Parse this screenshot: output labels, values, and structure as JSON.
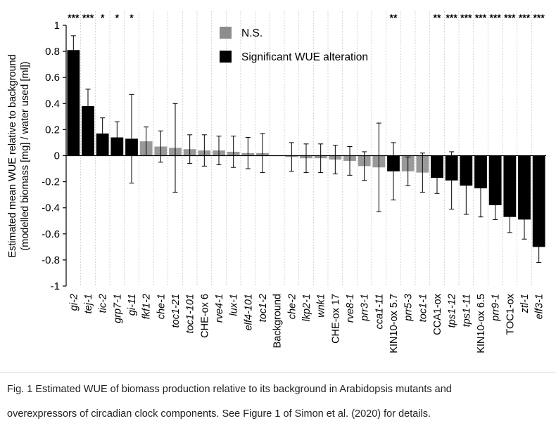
{
  "chart_data": {
    "type": "bar",
    "title": "",
    "ylabel": "Estimated mean WUE relative to background (modelled biomass [mg] / water used [ml])",
    "ylabel_lines": [
      "Estimated mean WUE relative to background",
      "(modelled biomass [mg] / water used [ml])"
    ],
    "xlabel": "",
    "ylim": [
      -1,
      1
    ],
    "yticks": [
      -1,
      -0.8,
      -0.6,
      -0.4,
      -0.2,
      0,
      0.2,
      0.4,
      0.6,
      0.8,
      1
    ],
    "ytick_labels": [
      "-1",
      "-0.8",
      "-0.6",
      "-0.4",
      "-0.2",
      "0",
      "0.2",
      "0.4",
      "0.6",
      "0.8",
      "1"
    ],
    "grid": "vertical dashed separators",
    "legend_position": "top-center",
    "legend": [
      {
        "label": "N.S.",
        "color": "#8c8c8c"
      },
      {
        "label": "Significant WUE alteration",
        "color": "#000000"
      }
    ],
    "colors": {
      "significant": "#000000",
      "ns": "#999999"
    },
    "series": [
      {
        "category": "gi-2",
        "italic": true,
        "value": 0.81,
        "err": 0.11,
        "significant": true,
        "stars": "***"
      },
      {
        "category": "tej-1",
        "italic": true,
        "value": 0.38,
        "err": 0.13,
        "significant": true,
        "stars": "***"
      },
      {
        "category": "tic-2",
        "italic": true,
        "value": 0.17,
        "err": 0.12,
        "significant": true,
        "stars": "*"
      },
      {
        "category": "grp7-1",
        "italic": true,
        "value": 0.14,
        "err": 0.12,
        "significant": true,
        "stars": "*"
      },
      {
        "category": "gi-11",
        "italic": true,
        "value": 0.13,
        "err": 0.34,
        "significant": true,
        "stars": "*"
      },
      {
        "category": "fkf1-2",
        "italic": true,
        "value": 0.11,
        "err": 0.11,
        "significant": false,
        "stars": ""
      },
      {
        "category": "che-1",
        "italic": true,
        "value": 0.07,
        "err": 0.12,
        "significant": false,
        "stars": ""
      },
      {
        "category": "toc1-21",
        "italic": true,
        "value": 0.06,
        "err": 0.34,
        "significant": false,
        "stars": ""
      },
      {
        "category": "toc1-101",
        "italic": true,
        "value": 0.05,
        "err": 0.11,
        "significant": false,
        "stars": ""
      },
      {
        "category": "CHE-ox 6",
        "italic": false,
        "value": 0.04,
        "err": 0.12,
        "significant": false,
        "stars": ""
      },
      {
        "category": "rve4-1",
        "italic": true,
        "value": 0.04,
        "err": 0.11,
        "significant": false,
        "stars": ""
      },
      {
        "category": "lux-1",
        "italic": true,
        "value": 0.03,
        "err": 0.12,
        "significant": false,
        "stars": ""
      },
      {
        "category": "elf4-101",
        "italic": true,
        "value": 0.02,
        "err": 0.12,
        "significant": false,
        "stars": ""
      },
      {
        "category": "toc1-2",
        "italic": true,
        "value": 0.02,
        "err": 0.15,
        "significant": false,
        "stars": ""
      },
      {
        "category": "Background",
        "italic": false,
        "value": 0.0,
        "err": 0.0,
        "significant": false,
        "stars": ""
      },
      {
        "category": "che-2",
        "italic": true,
        "value": -0.01,
        "err": 0.11,
        "significant": false,
        "stars": ""
      },
      {
        "category": "lkp2-1",
        "italic": true,
        "value": -0.02,
        "err": 0.11,
        "significant": false,
        "stars": ""
      },
      {
        "category": "wnk1",
        "italic": true,
        "value": -0.02,
        "err": 0.11,
        "significant": false,
        "stars": ""
      },
      {
        "category": "CHE-ox 17",
        "italic": false,
        "value": -0.03,
        "err": 0.11,
        "significant": false,
        "stars": ""
      },
      {
        "category": "rve8-1",
        "italic": true,
        "value": -0.04,
        "err": 0.11,
        "significant": false,
        "stars": ""
      },
      {
        "category": "prr3-1",
        "italic": true,
        "value": -0.08,
        "err": 0.11,
        "significant": false,
        "stars": ""
      },
      {
        "category": "cca1-11",
        "italic": true,
        "value": -0.09,
        "err": 0.34,
        "significant": false,
        "stars": ""
      },
      {
        "category": "KIN10-ox 5.7",
        "italic": false,
        "value": -0.12,
        "err": 0.22,
        "significant": true,
        "stars": "**"
      },
      {
        "category": "prr5-3",
        "italic": true,
        "value": -0.12,
        "err": 0.11,
        "significant": false,
        "stars": ""
      },
      {
        "category": "toc1-1",
        "italic": true,
        "value": -0.13,
        "err": 0.15,
        "significant": false,
        "stars": ""
      },
      {
        "category": "CCA1-ox",
        "italic": false,
        "value": -0.17,
        "err": 0.12,
        "significant": true,
        "stars": "**"
      },
      {
        "category": "tps1-12",
        "italic": true,
        "value": -0.19,
        "err": 0.22,
        "significant": true,
        "stars": "***"
      },
      {
        "category": "tps1-11",
        "italic": true,
        "value": -0.23,
        "err": 0.22,
        "significant": true,
        "stars": "***"
      },
      {
        "category": "KIN10-ox 6.5",
        "italic": false,
        "value": -0.25,
        "err": 0.22,
        "significant": true,
        "stars": "***"
      },
      {
        "category": "prr9-1",
        "italic": true,
        "value": -0.38,
        "err": 0.11,
        "significant": true,
        "stars": "***"
      },
      {
        "category": "TOC1-ox",
        "italic": false,
        "value": -0.47,
        "err": 0.12,
        "significant": true,
        "stars": "***"
      },
      {
        "category": "ztl-1",
        "italic": true,
        "value": -0.49,
        "err": 0.15,
        "significant": true,
        "stars": "***"
      },
      {
        "category": "elf3-1",
        "italic": true,
        "value": -0.7,
        "err": 0.12,
        "significant": true,
        "stars": "***"
      }
    ]
  },
  "caption": {
    "line1": "Fig. 1 Estimated WUE of biomass production relative to its background in Arabidopsis mutants and",
    "line2": "overexpressors of circadian clock components. See Figure 1 of Simon et al. (2020) for details."
  }
}
